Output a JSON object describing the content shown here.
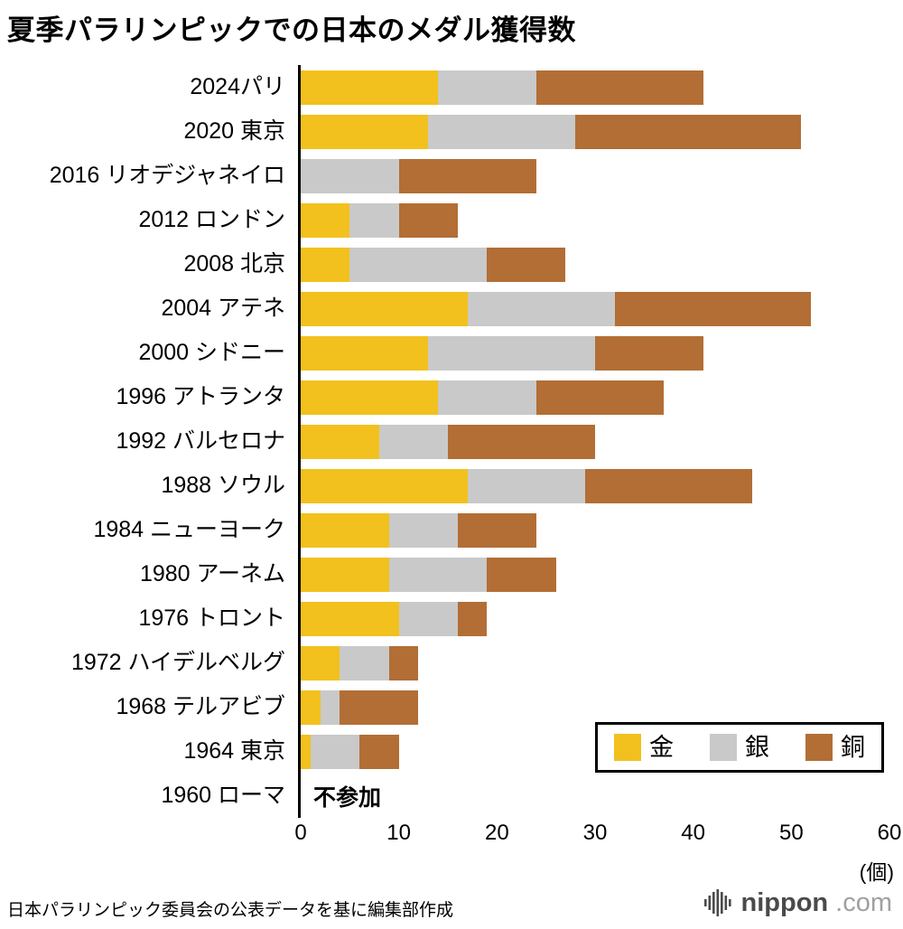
{
  "title": "夏季パラリンピックでの日本のメダル獲得数",
  "footer": {
    "source": "日本パラリンピック委員会の公表データを基に編集部作成",
    "logo_text": "nippon",
    "logo_suffix": ".com"
  },
  "colors": {
    "gold": "#F2C11D",
    "silver": "#C9C9C9",
    "bronze": "#B26E35",
    "axis": "#000000",
    "logo_dark": "#4a4a4a",
    "logo_light": "#a0a0a0"
  },
  "chart_data": {
    "type": "bar",
    "orientation": "horizontal",
    "stacked": true,
    "title": "夏季パラリンピックでの日本のメダル獲得数",
    "unit_label": "(個)",
    "xlim": [
      0,
      60
    ],
    "xticks": [
      0,
      10,
      20,
      30,
      40,
      50,
      60
    ],
    "grid": false,
    "legend_position": "bottom-right-inside",
    "categories": [
      "2024パリ",
      "2020 東京",
      "2016 リオデジャネイロ",
      "2012 ロンドン",
      "2008 北京",
      "2004 アテネ",
      "2000 シドニー",
      "1996 アトランタ",
      "1992 バルセロナ",
      "1988 ソウル",
      "1984 ニューヨーク",
      "1980 アーネム",
      "1976 トロント",
      "1972 ハイデルベルグ",
      "1968 テルアビブ",
      "1964 東京",
      "1960 ローマ"
    ],
    "series": [
      {
        "name": "金",
        "key": "gold",
        "color": "#F2C11D",
        "values": [
          14,
          13,
          0,
          5,
          5,
          17,
          13,
          14,
          8,
          17,
          9,
          9,
          10,
          4,
          2,
          1,
          0
        ]
      },
      {
        "name": "銀",
        "key": "silver",
        "color": "#C9C9C9",
        "values": [
          10,
          15,
          10,
          5,
          14,
          15,
          17,
          10,
          7,
          12,
          7,
          10,
          6,
          5,
          2,
          5,
          0
        ]
      },
      {
        "name": "銅",
        "key": "bronze",
        "color": "#B26E35",
        "values": [
          17,
          23,
          14,
          6,
          8,
          20,
          11,
          13,
          15,
          17,
          8,
          7,
          3,
          3,
          8,
          4,
          0
        ]
      }
    ],
    "notes": {
      "16": "不参加"
    }
  }
}
